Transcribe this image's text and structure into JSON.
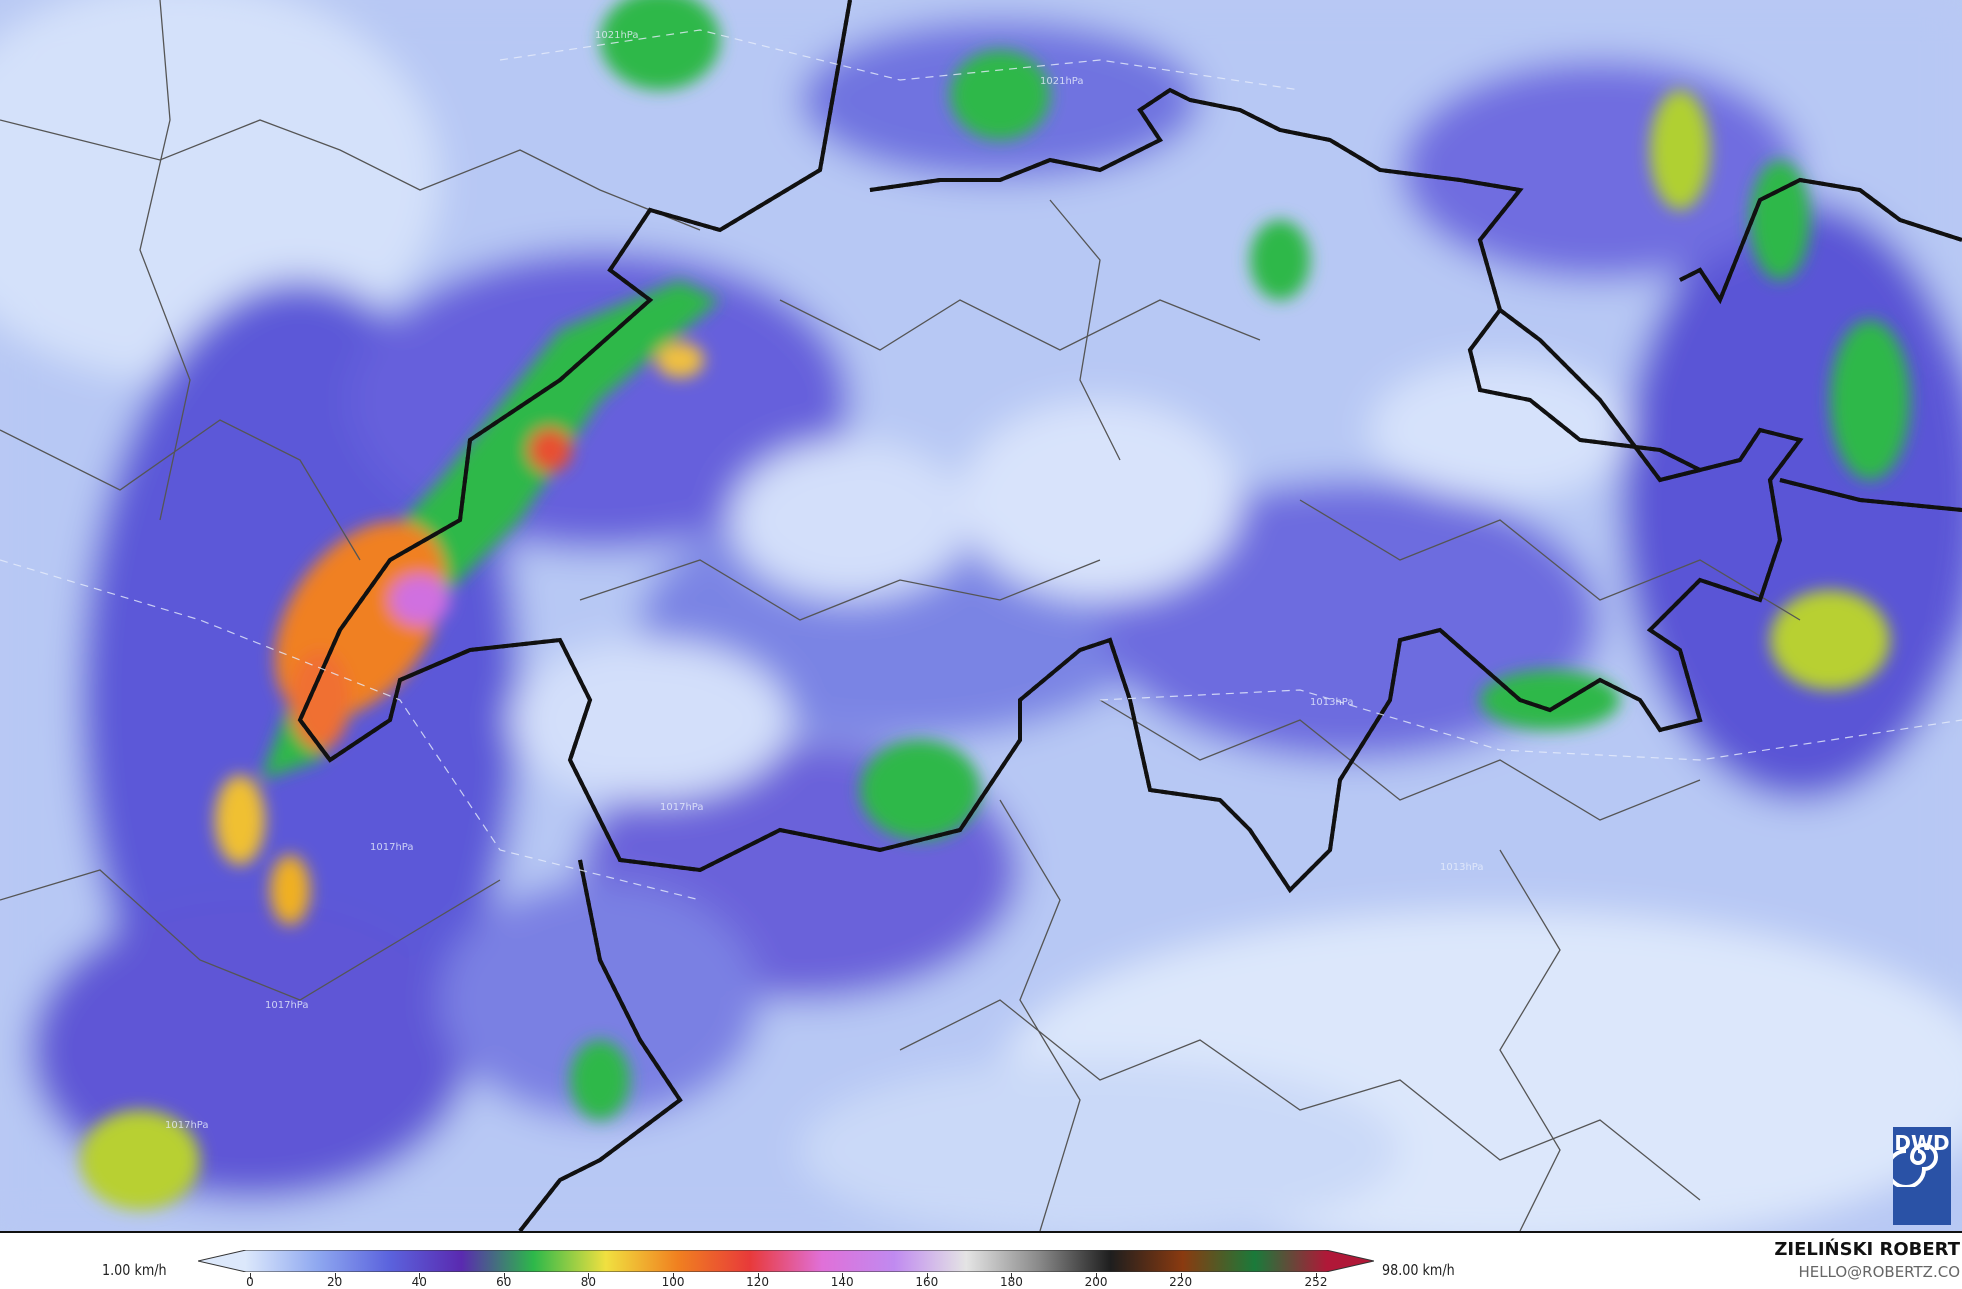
{
  "map": {
    "variable_unit": "km/h",
    "pressure_labels": [
      "1021hPa",
      "1021hPa",
      "1017hPa",
      "1017hPa",
      "1017hPa",
      "1017hPa",
      "1013hPa",
      "1013hPa"
    ],
    "colors": {
      "background": "#b9c9f3",
      "border_national": "#f0e040",
      "border_regional": "#555555"
    }
  },
  "legend": {
    "min_label": "1.00 km/h",
    "max_label": "98.00 km/h",
    "ticks": [
      "0",
      "20",
      "40",
      "60",
      "80",
      "100",
      "120",
      "140",
      "160",
      "180",
      "200",
      "220",
      "252"
    ],
    "gradient": [
      "#dce8fb",
      "#8fa8f0",
      "#5b63dd",
      "#5a2ab0",
      "#2db84a",
      "#f0e040",
      "#f08020",
      "#e83a3a",
      "#e070d8",
      "#c08af0",
      "#e4e4e4",
      "#8a8a8a",
      "#1e1e1e",
      "#8a3a10",
      "#1a7a3a",
      "#b01838"
    ]
  },
  "branding": {
    "logo_text": "DWD",
    "author": "ZIELIŃSKI ROBERT",
    "email": "HELLO@ROBERTZ.CO"
  }
}
